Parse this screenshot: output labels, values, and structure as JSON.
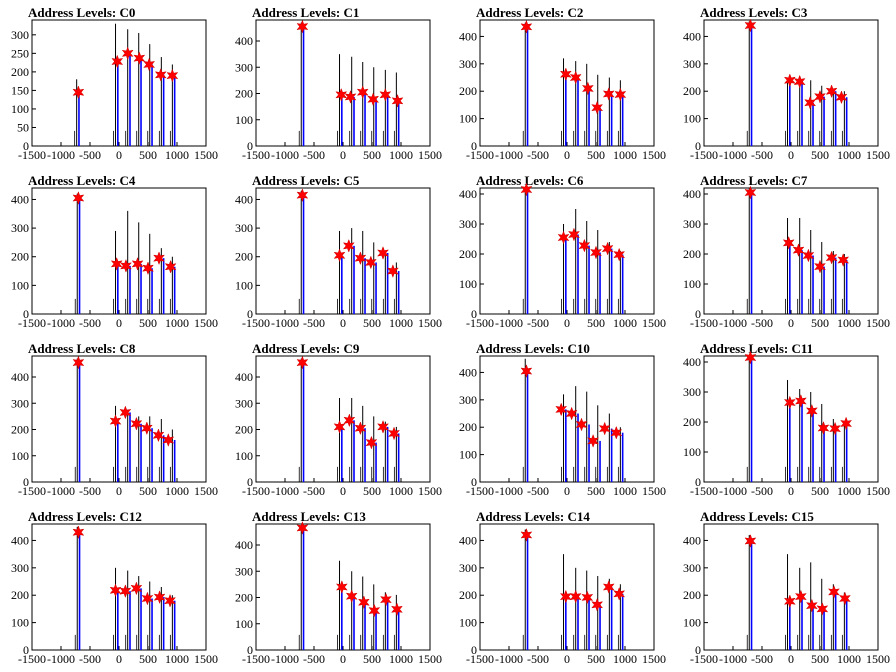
{
  "chart_data": [
    {
      "type": "bar",
      "title": "Address Levels: C0",
      "xlim": [
        -1500,
        1500
      ],
      "ylim": [
        0,
        340
      ],
      "yticks": [
        0,
        50,
        100,
        150,
        200,
        250,
        300
      ],
      "xticks": [
        -1500,
        -1000,
        -500,
        0,
        500,
        1000,
        1500
      ],
      "x": [
        -730,
        -60,
        150,
        340,
        530,
        730,
        920
      ],
      "y": [
        180,
        330,
        315,
        305,
        275,
        240,
        220
      ],
      "peaks": [
        {
          "x": -700,
          "y": 145
        },
        {
          "x": -30,
          "y": 228
        },
        {
          "x": 150,
          "y": 250
        },
        {
          "x": 350,
          "y": 237
        },
        {
          "x": 520,
          "y": 220
        },
        {
          "x": 720,
          "y": 192
        },
        {
          "x": 920,
          "y": 190
        }
      ]
    },
    {
      "type": "bar",
      "title": "Address Levels: C1",
      "xlim": [
        -1500,
        1500
      ],
      "ylim": [
        0,
        480
      ],
      "yticks": [
        0,
        100,
        200,
        300,
        400
      ],
      "xticks": [
        -1500,
        -1000,
        -500,
        0,
        500,
        1000,
        1500
      ],
      "x": [
        -720,
        -60,
        150,
        340,
        530,
        730,
        920
      ],
      "y": [
        470,
        350,
        340,
        320,
        300,
        290,
        280
      ],
      "peaks": [
        {
          "x": -700,
          "y": 455
        },
        {
          "x": -30,
          "y": 195
        },
        {
          "x": 130,
          "y": 187
        },
        {
          "x": 340,
          "y": 205
        },
        {
          "x": 520,
          "y": 178
        },
        {
          "x": 730,
          "y": 195
        },
        {
          "x": 940,
          "y": 172
        }
      ]
    },
    {
      "type": "bar",
      "title": "Address Levels: C2",
      "xlim": [
        -1500,
        1500
      ],
      "ylim": [
        0,
        460
      ],
      "yticks": [
        0,
        100,
        200,
        300,
        400
      ],
      "xticks": [
        -1500,
        -1000,
        -500,
        0,
        500,
        1000,
        1500
      ],
      "x": [
        -720,
        -60,
        150,
        340,
        530,
        730,
        920
      ],
      "y": [
        450,
        320,
        310,
        300,
        260,
        250,
        240
      ],
      "peaks": [
        {
          "x": -700,
          "y": 435
        },
        {
          "x": -20,
          "y": 262
        },
        {
          "x": 150,
          "y": 250
        },
        {
          "x": 360,
          "y": 210
        },
        {
          "x": 520,
          "y": 140
        },
        {
          "x": 720,
          "y": 190
        },
        {
          "x": 920,
          "y": 188
        }
      ]
    },
    {
      "type": "bar",
      "title": "Address Levels: C3",
      "xlim": [
        -1500,
        1500
      ],
      "ylim": [
        0,
        460
      ],
      "yticks": [
        0,
        100,
        200,
        300,
        400
      ],
      "xticks": [
        -1500,
        -1000,
        -500,
        0,
        500,
        1000,
        1500
      ],
      "x": [
        -720,
        -60,
        150,
        340,
        530,
        730,
        920
      ],
      "y": [
        455,
        250,
        250,
        240,
        220,
        210,
        200
      ],
      "peaks": [
        {
          "x": -700,
          "y": 440
        },
        {
          "x": -20,
          "y": 240
        },
        {
          "x": 150,
          "y": 235
        },
        {
          "x": 330,
          "y": 158
        },
        {
          "x": 500,
          "y": 180
        },
        {
          "x": 700,
          "y": 200
        },
        {
          "x": 870,
          "y": 178
        }
      ]
    },
    {
      "type": "bar",
      "title": "Address Levels: C4",
      "xlim": [
        -1500,
        1500
      ],
      "ylim": [
        0,
        440
      ],
      "yticks": [
        0,
        100,
        200,
        300,
        400
      ],
      "xticks": [
        -1500,
        -1000,
        -500,
        0,
        500,
        1000,
        1500
      ],
      "x": [
        -720,
        -60,
        150,
        340,
        530,
        730,
        920
      ],
      "y": [
        420,
        290,
        360,
        320,
        280,
        230,
        200
      ],
      "peaks": [
        {
          "x": -700,
          "y": 405
        },
        {
          "x": -40,
          "y": 175
        },
        {
          "x": 120,
          "y": 168
        },
        {
          "x": 320,
          "y": 175
        },
        {
          "x": 500,
          "y": 160
        },
        {
          "x": 690,
          "y": 195
        },
        {
          "x": 890,
          "y": 165
        }
      ]
    },
    {
      "type": "bar",
      "title": "Address Levels: C5",
      "xlim": [
        -1500,
        1500
      ],
      "ylim": [
        0,
        440
      ],
      "yticks": [
        0,
        100,
        200,
        300,
        400
      ],
      "xticks": [
        -1500,
        -1000,
        -500,
        0,
        500,
        1000,
        1500
      ],
      "x": [
        -720,
        -60,
        150,
        340,
        530,
        730,
        920
      ],
      "y": [
        430,
        290,
        300,
        290,
        250,
        220,
        180
      ],
      "peaks": [
        {
          "x": -700,
          "y": 415
        },
        {
          "x": -60,
          "y": 205
        },
        {
          "x": 100,
          "y": 238
        },
        {
          "x": 300,
          "y": 195
        },
        {
          "x": 480,
          "y": 180
        },
        {
          "x": 690,
          "y": 213
        },
        {
          "x": 860,
          "y": 150
        }
      ]
    },
    {
      "type": "bar",
      "title": "Address Levels: C6",
      "xlim": [
        -1500,
        1500
      ],
      "ylim": [
        0,
        420
      ],
      "yticks": [
        0,
        100,
        200,
        300,
        400
      ],
      "xticks": [
        -1500,
        -1000,
        -500,
        0,
        500,
        1000,
        1500
      ],
      "x": [
        -720,
        -60,
        150,
        340,
        530,
        730,
        920
      ],
      "y": [
        420,
        300,
        350,
        310,
        280,
        240,
        210
      ],
      "peaks": [
        {
          "x": -700,
          "y": 415
        },
        {
          "x": -60,
          "y": 255
        },
        {
          "x": 120,
          "y": 265
        },
        {
          "x": 300,
          "y": 228
        },
        {
          "x": 500,
          "y": 205
        },
        {
          "x": 700,
          "y": 218
        },
        {
          "x": 900,
          "y": 198
        }
      ]
    },
    {
      "type": "bar",
      "title": "Address Levels: C7",
      "xlim": [
        -1500,
        1500
      ],
      "ylim": [
        0,
        420
      ],
      "yticks": [
        0,
        100,
        200,
        300,
        400
      ],
      "xticks": [
        -1500,
        -1000,
        -500,
        0,
        500,
        1000,
        1500
      ],
      "x": [
        -720,
        -60,
        150,
        340,
        530,
        730,
        920
      ],
      "y": [
        420,
        320,
        320,
        280,
        240,
        210,
        200
      ],
      "peaks": [
        {
          "x": -700,
          "y": 405
        },
        {
          "x": -40,
          "y": 237
        },
        {
          "x": 130,
          "y": 213
        },
        {
          "x": 300,
          "y": 195
        },
        {
          "x": 500,
          "y": 158
        },
        {
          "x": 700,
          "y": 188
        },
        {
          "x": 900,
          "y": 180
        }
      ]
    },
    {
      "type": "bar",
      "title": "Address Levels: C8",
      "xlim": [
        -1500,
        1500
      ],
      "ylim": [
        0,
        480
      ],
      "yticks": [
        0,
        100,
        200,
        300,
        400
      ],
      "xticks": [
        -1500,
        -1000,
        -500,
        0,
        500,
        1000,
        1500
      ],
      "x": [
        -720,
        -60,
        150,
        340,
        530,
        730,
        920
      ],
      "y": [
        470,
        290,
        270,
        250,
        250,
        240,
        200
      ],
      "peaks": [
        {
          "x": -700,
          "y": 455
        },
        {
          "x": -60,
          "y": 232
        },
        {
          "x": 110,
          "y": 265
        },
        {
          "x": 300,
          "y": 222
        },
        {
          "x": 480,
          "y": 205
        },
        {
          "x": 680,
          "y": 178
        },
        {
          "x": 850,
          "y": 160
        }
      ]
    },
    {
      "type": "bar",
      "title": "Address Levels: C9",
      "xlim": [
        -1500,
        1500
      ],
      "ylim": [
        0,
        480
      ],
      "yticks": [
        0,
        100,
        200,
        300,
        400
      ],
      "xticks": [
        -1500,
        -1000,
        -500,
        0,
        500,
        1000,
        1500
      ],
      "x": [
        -720,
        -60,
        150,
        340,
        530,
        730,
        920
      ],
      "y": [
        470,
        320,
        320,
        290,
        250,
        230,
        210
      ],
      "peaks": [
        {
          "x": -700,
          "y": 455
        },
        {
          "x": -60,
          "y": 210
        },
        {
          "x": 110,
          "y": 235
        },
        {
          "x": 300,
          "y": 205
        },
        {
          "x": 490,
          "y": 150
        },
        {
          "x": 690,
          "y": 210
        },
        {
          "x": 880,
          "y": 185
        }
      ]
    },
    {
      "type": "bar",
      "title": "Address Levels: C10",
      "xlim": [
        -1500,
        1500
      ],
      "ylim": [
        0,
        460
      ],
      "yticks": [
        0,
        100,
        200,
        300,
        400
      ],
      "xticks": [
        -1500,
        -1000,
        -500,
        0,
        500,
        1000,
        1500
      ],
      "x": [
        -720,
        -60,
        150,
        340,
        530,
        730,
        920
      ],
      "y": [
        450,
        320,
        350,
        330,
        280,
        250,
        200
      ],
      "peaks": [
        {
          "x": -700,
          "y": 405
        },
        {
          "x": -100,
          "y": 265
        },
        {
          "x": 80,
          "y": 250
        },
        {
          "x": 250,
          "y": 210
        },
        {
          "x": 450,
          "y": 150
        },
        {
          "x": 650,
          "y": 195
        },
        {
          "x": 850,
          "y": 180
        }
      ]
    },
    {
      "type": "bar",
      "title": "Address Levels: C11",
      "xlim": [
        -1500,
        1500
      ],
      "ylim": [
        0,
        420
      ],
      "yticks": [
        0,
        100,
        200,
        300,
        400
      ],
      "xticks": [
        -1500,
        -1000,
        -500,
        0,
        500,
        1000,
        1500
      ],
      "x": [
        -720,
        -60,
        150,
        340,
        530,
        730,
        920
      ],
      "y": [
        420,
        340,
        310,
        300,
        260,
        210,
        200
      ],
      "peaks": [
        {
          "x": -700,
          "y": 415
        },
        {
          "x": -20,
          "y": 265
        },
        {
          "x": 170,
          "y": 270
        },
        {
          "x": 360,
          "y": 237
        },
        {
          "x": 560,
          "y": 180
        },
        {
          "x": 760,
          "y": 178
        },
        {
          "x": 950,
          "y": 195
        }
      ]
    },
    {
      "type": "bar",
      "title": "Address Levels: C12",
      "xlim": [
        -1500,
        1500
      ],
      "ylim": [
        0,
        460
      ],
      "yticks": [
        0,
        100,
        200,
        300,
        400
      ],
      "xticks": [
        -1500,
        -1000,
        -500,
        0,
        500,
        1000,
        1500
      ],
      "x": [
        -720,
        -60,
        150,
        340,
        530,
        730,
        920
      ],
      "y": [
        450,
        300,
        290,
        270,
        250,
        230,
        200
      ],
      "peaks": [
        {
          "x": -700,
          "y": 430
        },
        {
          "x": -60,
          "y": 218
        },
        {
          "x": 110,
          "y": 215
        },
        {
          "x": 300,
          "y": 225
        },
        {
          "x": 490,
          "y": 188
        },
        {
          "x": 700,
          "y": 193
        },
        {
          "x": 880,
          "y": 180
        }
      ]
    },
    {
      "type": "bar",
      "title": "Address Levels: C13",
      "xlim": [
        -1500,
        1500
      ],
      "ylim": [
        0,
        480
      ],
      "yticks": [
        0,
        100,
        200,
        300,
        400
      ],
      "xticks": [
        -1500,
        -1000,
        -500,
        0,
        500,
        1000,
        1500
      ],
      "x": [
        -720,
        -60,
        150,
        340,
        530,
        730,
        920
      ],
      "y": [
        470,
        340,
        300,
        280,
        250,
        220,
        210
      ],
      "peaks": [
        {
          "x": -700,
          "y": 465
        },
        {
          "x": -20,
          "y": 240
        },
        {
          "x": 150,
          "y": 205
        },
        {
          "x": 360,
          "y": 182
        },
        {
          "x": 540,
          "y": 150
        },
        {
          "x": 740,
          "y": 192
        },
        {
          "x": 930,
          "y": 155
        }
      ]
    },
    {
      "type": "bar",
      "title": "Address Levels: C14",
      "xlim": [
        -1500,
        1500
      ],
      "ylim": [
        0,
        460
      ],
      "yticks": [
        0,
        100,
        200,
        300,
        400
      ],
      "xticks": [
        -1500,
        -1000,
        -500,
        0,
        500,
        1000,
        1500
      ],
      "x": [
        -720,
        -60,
        150,
        340,
        530,
        730,
        920
      ],
      "y": [
        440,
        350,
        300,
        290,
        270,
        260,
        240
      ],
      "peaks": [
        {
          "x": -700,
          "y": 420
        },
        {
          "x": -20,
          "y": 195
        },
        {
          "x": 150,
          "y": 195
        },
        {
          "x": 350,
          "y": 192
        },
        {
          "x": 520,
          "y": 165
        },
        {
          "x": 720,
          "y": 230
        },
        {
          "x": 900,
          "y": 205
        }
      ]
    },
    {
      "type": "bar",
      "title": "Address Levels: C15",
      "xlim": [
        -1500,
        1500
      ],
      "ylim": [
        0,
        460
      ],
      "yticks": [
        0,
        100,
        200,
        300,
        400
      ],
      "xticks": [
        -1500,
        -1000,
        -500,
        0,
        500,
        1000,
        1500
      ],
      "x": [
        -720,
        -60,
        150,
        340,
        530,
        730,
        920
      ],
      "y": [
        420,
        350,
        300,
        320,
        260,
        240,
        210
      ],
      "peaks": [
        {
          "x": -700,
          "y": 398
        },
        {
          "x": -20,
          "y": 178
        },
        {
          "x": 170,
          "y": 195
        },
        {
          "x": 360,
          "y": 162
        },
        {
          "x": 540,
          "y": 150
        },
        {
          "x": 740,
          "y": 212
        },
        {
          "x": 930,
          "y": 188
        }
      ]
    }
  ],
  "colors": {
    "spike": "#000000",
    "fill": "#0000ff",
    "marker": "#ff0000",
    "axis": "#000000"
  },
  "marker_icon": "star-marker-icon"
}
